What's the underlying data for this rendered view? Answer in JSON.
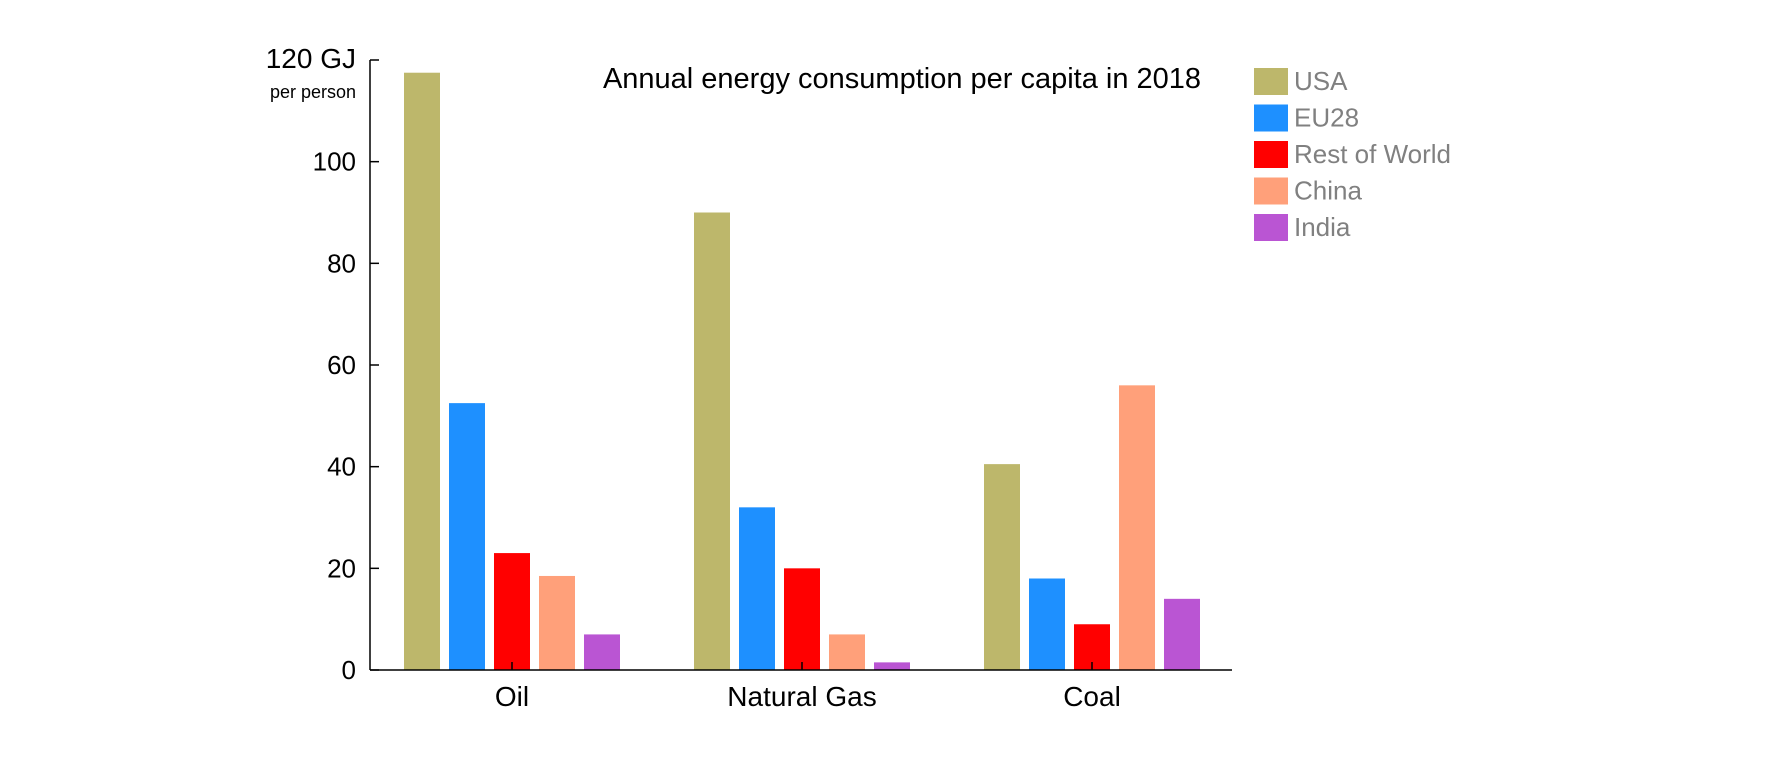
{
  "chart_data": {
    "type": "bar",
    "title": "Annual energy consumption per capita in 2018",
    "ylabel": "GJ",
    "ylabel_sub": "per person",
    "top_tick_label": "120 GJ",
    "yticks": [
      0,
      20,
      40,
      60,
      80,
      100,
      120
    ],
    "ylim": [
      0,
      120
    ],
    "categories": [
      "Oil",
      "Natural Gas",
      "Coal"
    ],
    "series": [
      {
        "name": "USA",
        "color": "#BDB76B",
        "values": [
          117.5,
          90,
          40.5
        ]
      },
      {
        "name": "EU28",
        "color": "#1E90FF",
        "values": [
          52.5,
          32,
          18
        ]
      },
      {
        "name": "Rest of World",
        "color": "#FF0000",
        "values": [
          23,
          20,
          9
        ]
      },
      {
        "name": "China",
        "color": "#FFA07A",
        "values": [
          18.5,
          7,
          56
        ]
      },
      {
        "name": "India",
        "color": "#BA55D3",
        "values": [
          7,
          1.5,
          14
        ]
      }
    ],
    "grid": false,
    "legend_position": "top-right"
  }
}
